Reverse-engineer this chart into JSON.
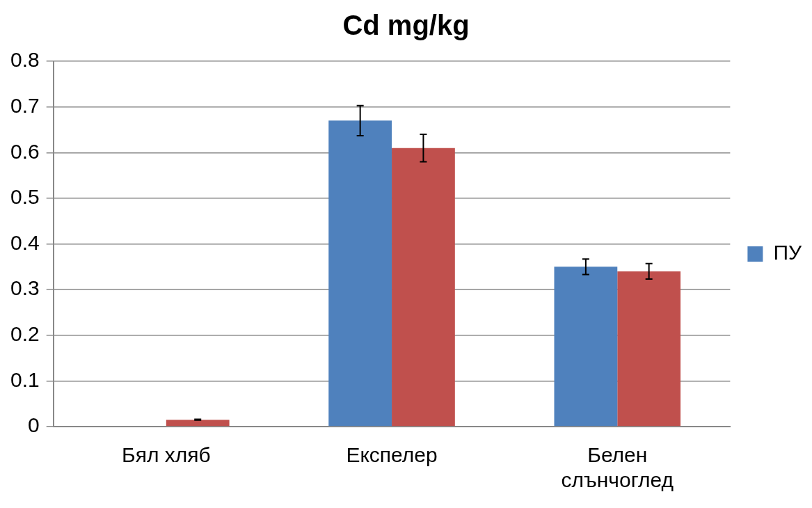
{
  "chart_data": {
    "type": "bar",
    "title": "Cd mg/kg",
    "categories": [
      "Бял хляб",
      "Експелер",
      "Белен слънчоглед"
    ],
    "series": [
      {
        "name": "ПУ",
        "color": "#4f81bd",
        "values": [
          0,
          0.67,
          0.35
        ],
        "errors": [
          null,
          0.033,
          0.017
        ]
      },
      {
        "color": "#c0504d",
        "values": [
          0.015,
          0.61,
          0.34
        ],
        "errors": [
          0.001,
          0.03,
          0.017
        ]
      }
    ],
    "ylim": [
      0,
      0.8
    ],
    "yticks": [
      0,
      0.1,
      0.2,
      0.3,
      0.4,
      0.5,
      0.6,
      0.7,
      0.8
    ],
    "grid": "y",
    "legend": "right"
  }
}
